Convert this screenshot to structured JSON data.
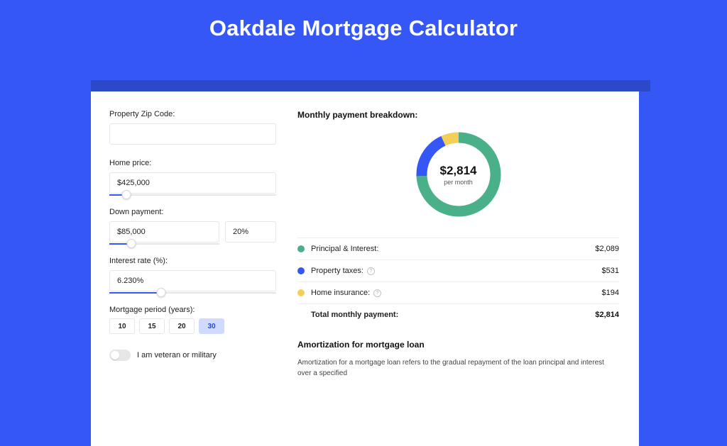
{
  "header": {
    "title": "Oakdale Mortgage Calculator"
  },
  "form": {
    "zip": {
      "label": "Property Zip Code:",
      "value": ""
    },
    "price": {
      "label": "Home price:",
      "value": "$425,000",
      "slider_pct": 10
    },
    "down": {
      "label": "Down payment:",
      "value": "$85,000",
      "pct_value": "20%",
      "slider_pct": 20
    },
    "rate": {
      "label": "Interest rate (%):",
      "value": "6.230%",
      "slider_pct": 31
    },
    "period": {
      "label": "Mortgage period (years):",
      "options": [
        "10",
        "15",
        "20",
        "30"
      ],
      "selected_index": 3
    },
    "veteran": {
      "label": "I am veteran or military",
      "on": false
    }
  },
  "breakdown": {
    "title": "Monthly payment breakdown:",
    "center_value": "$2,814",
    "center_sub": "per month",
    "items": [
      {
        "label": "Principal & Interest:",
        "amount": "$2,089",
        "has_info": false
      },
      {
        "label": "Property taxes:",
        "amount": "$531",
        "has_info": true
      },
      {
        "label": "Home insurance:",
        "amount": "$194",
        "has_info": true
      }
    ],
    "total": {
      "label": "Total monthly payment:",
      "amount": "$2,814"
    },
    "donut": {
      "segments": [
        {
          "value": 2089,
          "color": "#4ab08a"
        },
        {
          "value": 531,
          "color": "#3457f5"
        },
        {
          "value": 194,
          "color": "#f3cf5a"
        }
      ],
      "thickness": 15,
      "radius": 52,
      "bg": "#ffffff"
    },
    "colors": {
      "pi": "#4ab08a",
      "tax": "#3457f5",
      "ins": "#f3cf5a"
    }
  },
  "amortization": {
    "title": "Amortization for mortgage loan",
    "body": "Amortization for a mortgage loan refers to the gradual repayment of the loan principal and interest over a specified"
  }
}
